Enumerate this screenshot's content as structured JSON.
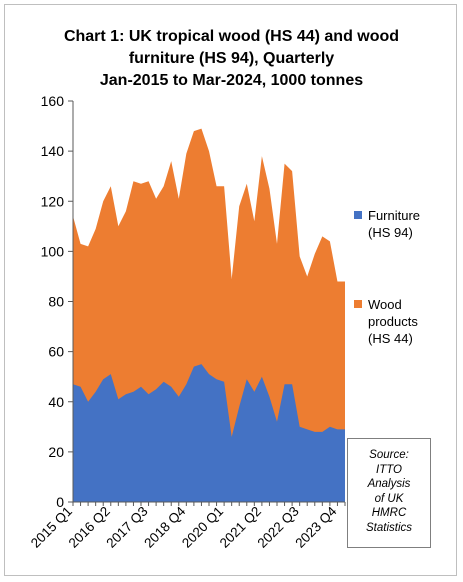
{
  "chart_data": {
    "type": "area",
    "stacked": true,
    "title": [
      "Chart 1: UK tropical wood (HS 44) and wood",
      "furniture (HS 94), Quarterly",
      "Jan-2015 to Mar-2024, 1000 tonnes"
    ],
    "ylim": [
      0,
      160
    ],
    "yticks": [
      0,
      20,
      40,
      60,
      80,
      100,
      120,
      140,
      160
    ],
    "categories": [
      "2015 Q1",
      "2015 Q2",
      "2015 Q3",
      "2015 Q4",
      "2016 Q1",
      "2016 Q2",
      "2016 Q3",
      "2016 Q4",
      "2017 Q1",
      "2017 Q2",
      "2017 Q3",
      "2017 Q4",
      "2018 Q1",
      "2018 Q2",
      "2018 Q3",
      "2018 Q4",
      "2019 Q1",
      "2019 Q2",
      "2019 Q3",
      "2019 Q4",
      "2020 Q1",
      "2020 Q2",
      "2020 Q3",
      "2020 Q4",
      "2021 Q1",
      "2021 Q2",
      "2021 Q3",
      "2021 Q4",
      "2022 Q1",
      "2022 Q2",
      "2022 Q3",
      "2022 Q4",
      "2023 Q1",
      "2023 Q2",
      "2023 Q3",
      "2023 Q4",
      "2024 Q1"
    ],
    "xtick_labels": [
      "2015 Q1",
      "2016 Q2",
      "2017 Q3",
      "2018 Q4",
      "2020 Q1",
      "2021 Q2",
      "2022 Q3",
      "2023 Q4"
    ],
    "series": [
      {
        "name": "Furniture\n(HS 94)",
        "color": "#4472c4",
        "values": [
          47,
          46,
          40,
          44,
          49,
          51,
          41,
          43,
          44,
          46,
          43,
          45,
          48,
          46,
          42,
          47,
          54,
          55,
          51,
          49,
          48,
          26,
          38,
          49,
          44,
          50,
          42,
          32,
          47,
          47,
          30,
          29,
          28,
          28,
          30,
          29,
          29
        ]
      },
      {
        "name": "Wood\nproducts\n(HS 44)",
        "color": "#ed7d31",
        "values": [
          67,
          57,
          62,
          65,
          71,
          75,
          69,
          73,
          84,
          81,
          85,
          76,
          78,
          90,
          79,
          92,
          94,
          94,
          89,
          77,
          78,
          63,
          80,
          78,
          68,
          88,
          83,
          71,
          88,
          85,
          68,
          61,
          71,
          78,
          74,
          59,
          59
        ]
      }
    ]
  },
  "source": "Source:\nITTO\nAnalysis\nof UK\nHMRC\nStatistics"
}
